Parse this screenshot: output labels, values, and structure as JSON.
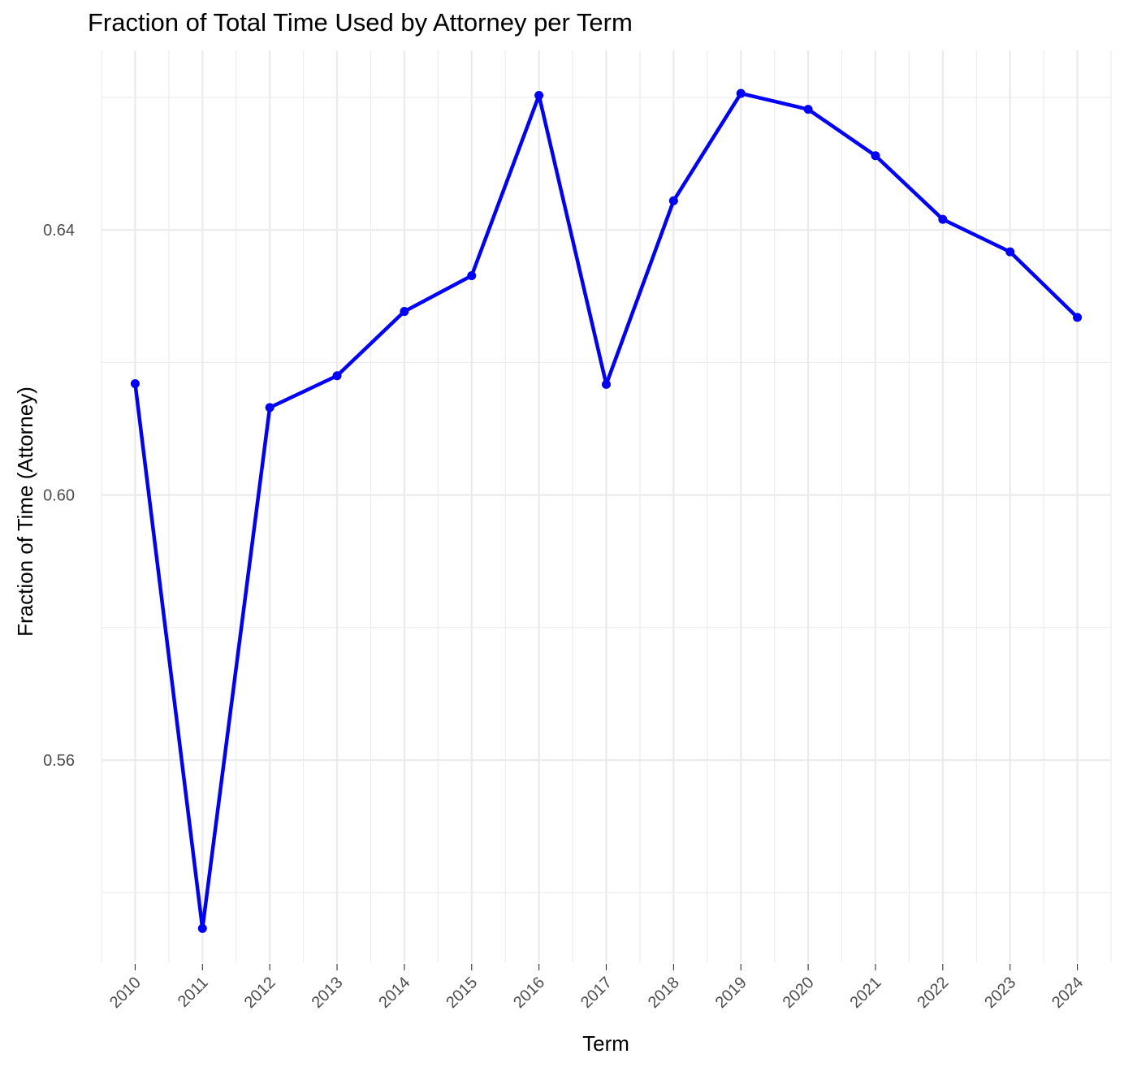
{
  "chart_data": {
    "type": "line",
    "title": "Fraction of Total Time Used by Attorney per Term",
    "xlabel": "Term",
    "ylabel": "Fraction of Time (Attorney)",
    "x": [
      2010,
      2011,
      2012,
      2013,
      2014,
      2015,
      2016,
      2017,
      2018,
      2019,
      2020,
      2021,
      2022,
      2023,
      2024
    ],
    "x_tick_labels": [
      "2010",
      "2011",
      "2012",
      "2013",
      "2014",
      "2015",
      "2016",
      "2017",
      "2018",
      "2019",
      "2020",
      "2021",
      "2022",
      "2023",
      "2024"
    ],
    "series": [
      {
        "values": [
          0.6168,
          0.5346,
          0.6132,
          0.618,
          0.6277,
          0.6331,
          0.6603,
          0.6167,
          0.6444,
          0.6606,
          0.6582,
          0.6512,
          0.6416,
          0.6367,
          0.6268
        ]
      }
    ],
    "y_ticks": [
      0.56,
      0.6,
      0.64
    ],
    "y_tick_labels": [
      "0.56",
      "0.60",
      "0.64"
    ],
    "ylim": [
      0.5295,
      0.6671
    ],
    "xlim": [
      2009.5,
      2024.5
    ],
    "grid": true,
    "legend": "none",
    "colors": {
      "line": "#0000FF",
      "grid": "#EBEBEB",
      "tick_text": "#4D4D4D"
    }
  }
}
